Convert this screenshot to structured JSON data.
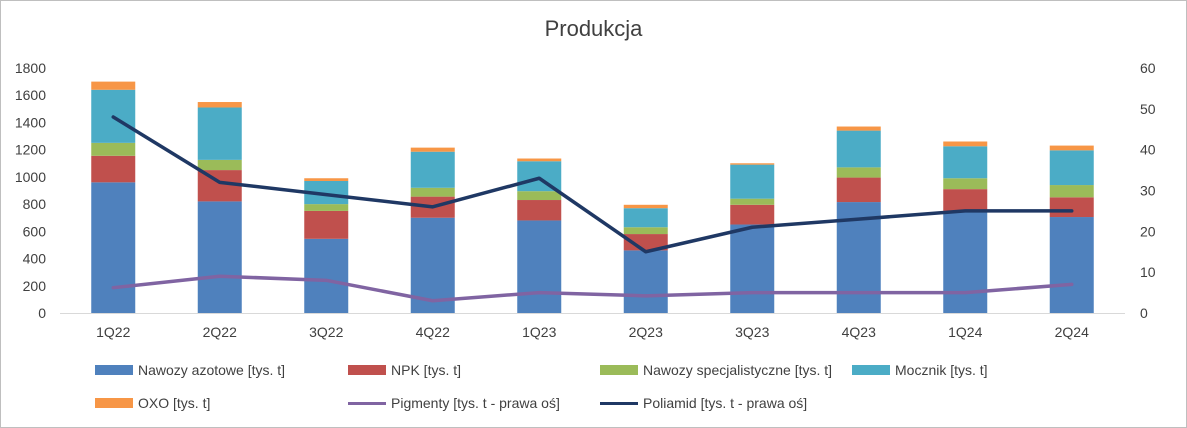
{
  "chart_data": {
    "type": "bar",
    "title": "Produkcja",
    "categories": [
      "1Q22",
      "2Q22",
      "3Q22",
      "4Q22",
      "1Q23",
      "2Q23",
      "3Q23",
      "4Q23",
      "1Q24",
      "2Q24"
    ],
    "stacked_series": [
      {
        "name": "Nawozy azotowe [tys. t]",
        "color": "#4F81BD",
        "values": [
          960,
          820,
          545,
          700,
          680,
          460,
          650,
          815,
          750,
          705
        ]
      },
      {
        "name": "NPK [tys. t]",
        "color": "#C0504D",
        "values": [
          195,
          230,
          205,
          155,
          150,
          120,
          145,
          180,
          160,
          145
        ]
      },
      {
        "name": "Nawozy specjalistyczne [tys. t]",
        "color": "#9BBB59",
        "values": [
          95,
          75,
          50,
          65,
          65,
          50,
          45,
          75,
          80,
          90
        ]
      },
      {
        "name": "Mocznik  [tys. t]",
        "color": "#4BACC6",
        "values": [
          390,
          385,
          170,
          265,
          220,
          140,
          250,
          270,
          235,
          255
        ]
      },
      {
        "name": "OXO [tys. t]",
        "color": "#F79646",
        "values": [
          60,
          40,
          20,
          30,
          20,
          25,
          10,
          30,
          35,
          35
        ]
      }
    ],
    "line_series": [
      {
        "name": "Pigmenty  [tys. t - prawa oś]",
        "color": "#8064A2",
        "axis": "right",
        "values": [
          6.2,
          9.0,
          8.0,
          3.0,
          5.0,
          4.2,
          5.0,
          5.0,
          5.0,
          7.0
        ]
      },
      {
        "name": "Poliamid [tys. t - prawa oś]",
        "color": "#1F3864",
        "axis": "right",
        "values": [
          48,
          32,
          29,
          26,
          33,
          15,
          21,
          23,
          25,
          25
        ]
      }
    ],
    "y_left": {
      "min": 0,
      "max": 1800,
      "step": 200,
      "ticks": [
        "0",
        "200",
        "400",
        "600",
        "800",
        "1000",
        "1200",
        "1400",
        "1600",
        "1800"
      ]
    },
    "y_right": {
      "min": 0,
      "max": 60,
      "step": 10,
      "ticks": [
        "0",
        "10",
        "20",
        "30",
        "40",
        "50",
        "60"
      ]
    },
    "grid": false,
    "legend_position": "bottom"
  }
}
